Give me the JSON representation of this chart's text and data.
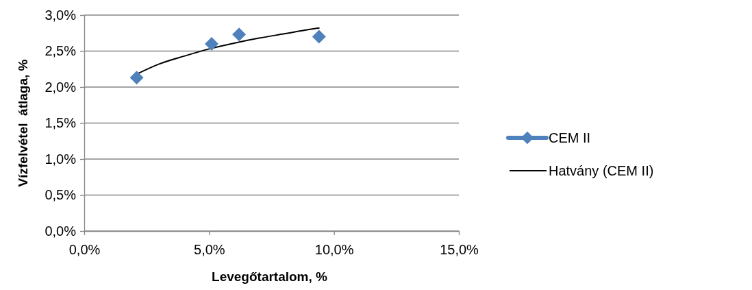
{
  "chart_data": {
    "type": "scatter",
    "xlabel": "Levegőtartalom, %",
    "ylabel": "Vízfelvétel  átlaga, %",
    "series": [
      {
        "name": "CEM II",
        "type": "scatter",
        "color": "#4f81bd",
        "marker": "diamond",
        "x": [
          2.1,
          5.1,
          6.2,
          9.4
        ],
        "values": [
          2.13,
          2.6,
          2.73,
          2.7
        ]
      },
      {
        "name": "Hatvány (CEM II)",
        "type": "line",
        "color": "#000000",
        "marker": "none",
        "x": [
          2.1,
          3,
          4,
          5,
          6,
          7,
          8,
          9,
          9.4
        ],
        "values": [
          2.18,
          2.32,
          2.43,
          2.53,
          2.61,
          2.68,
          2.74,
          2.8,
          2.82
        ]
      }
    ],
    "xlim": [
      0,
      15
    ],
    "xticks": [
      {
        "value": 0,
        "label": "0,0%"
      },
      {
        "value": 5,
        "label": "5,0%"
      },
      {
        "value": 10,
        "label": "10,0%"
      },
      {
        "value": 15,
        "label": "15,0%"
      }
    ],
    "ylim": [
      0,
      3
    ],
    "yticks": [
      {
        "value": 0,
        "label": "0,0%"
      },
      {
        "value": 0.5,
        "label": "0,5%"
      },
      {
        "value": 1,
        "label": "1,0%"
      },
      {
        "value": 1.5,
        "label": "1,5%"
      },
      {
        "value": 2,
        "label": "2,0%"
      },
      {
        "value": 2.5,
        "label": "2,5%"
      },
      {
        "value": 3,
        "label": "3,0%"
      }
    ],
    "grid": "y",
    "legend": "right"
  }
}
